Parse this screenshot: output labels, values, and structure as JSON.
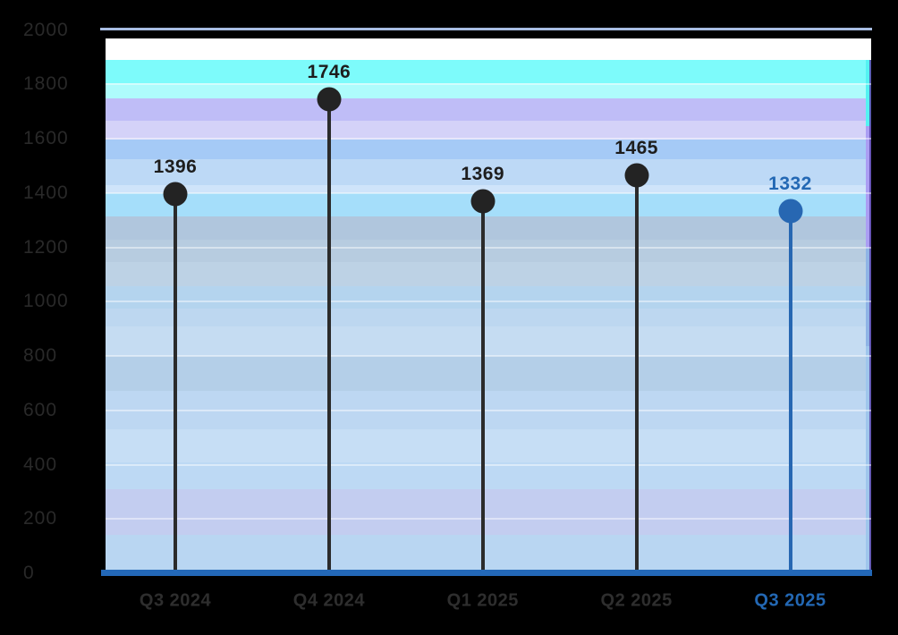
{
  "chart_data": {
    "type": "lollipop",
    "title": "",
    "categories": [
      "Q3 2024",
      "Q4 2024",
      "Q1 2025",
      "Q2 2025",
      "Q3 2025"
    ],
    "values": [
      1396,
      1746,
      1369,
      1465,
      1332
    ],
    "data_labels": [
      "1396",
      "1746",
      "1369",
      "1465",
      "1332"
    ],
    "series": [
      {
        "name": "quarterly-values",
        "values": [
          1396,
          1746,
          1369,
          1465,
          1332
        ]
      }
    ],
    "highlight_index": 4,
    "highlight_category": "Q3 2025",
    "highlight_value": 1332,
    "xlabel": "",
    "ylabel": "",
    "ylim": [
      0,
      2000
    ],
    "ytick_step": 200,
    "yticks": [
      0,
      200,
      400,
      600,
      800,
      1000,
      1200,
      1400,
      1600,
      1800,
      2000
    ],
    "grid": "horizontal-only",
    "legend_position": "none",
    "colors": {
      "point": "#232323",
      "stem": "#2b2b2b",
      "value_label": "#1d1d1d",
      "highlight": "#2767b2",
      "highlight_text": "#2368b4",
      "axis_line": "#2368b8",
      "top_gridline": "#a8bde2",
      "gridline": "rgba(255,255,255,0.45)",
      "xtick_label": "#2e2e2e",
      "ytick_label": "#292929",
      "page_background": "#000000"
    }
  }
}
